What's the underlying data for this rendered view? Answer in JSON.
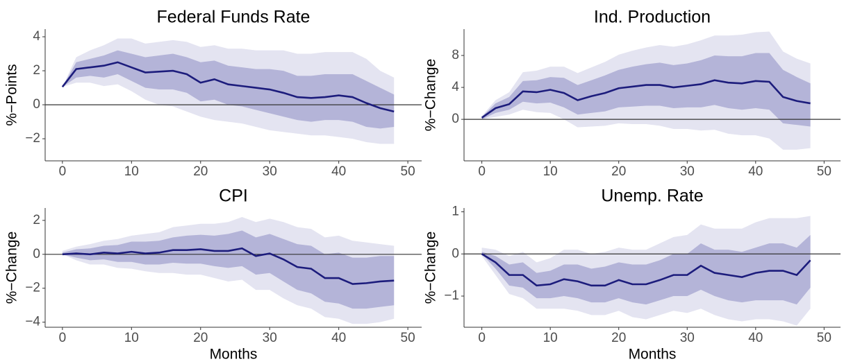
{
  "chart_data": [
    {
      "type": "line",
      "title": "Federal Funds Rate",
      "ylabel": "%−Points",
      "x": [
        0,
        2,
        4,
        6,
        8,
        10,
        12,
        14,
        16,
        18,
        20,
        22,
        24,
        26,
        28,
        30,
        32,
        34,
        36,
        38,
        40,
        42,
        44,
        46,
        48
      ],
      "values": [
        1.05,
        2.1,
        2.2,
        2.3,
        2.5,
        2.2,
        1.9,
        1.95,
        2.0,
        1.8,
        1.3,
        1.5,
        1.2,
        1.1,
        1.0,
        0.9,
        0.7,
        0.45,
        0.4,
        0.45,
        0.55,
        0.45,
        0.1,
        -0.2,
        -0.4
      ],
      "color": "#1c1c7c",
      "inner_band": {
        "color": "#b4b4d8",
        "lower": [
          1.05,
          1.6,
          1.7,
          1.6,
          1.8,
          1.4,
          1.0,
          0.9,
          0.9,
          0.7,
          0.2,
          0.3,
          0.0,
          -0.1,
          -0.3,
          -0.5,
          -0.7,
          -0.9,
          -1.0,
          -0.9,
          -0.9,
          -1.0,
          -1.3,
          -1.4,
          -1.3
        ],
        "upper": [
          1.05,
          2.5,
          2.7,
          2.9,
          3.2,
          3.0,
          2.8,
          2.9,
          3.0,
          2.8,
          2.5,
          2.6,
          2.3,
          2.2,
          2.1,
          2.1,
          2.0,
          1.7,
          1.7,
          1.8,
          1.8,
          1.8,
          1.4,
          1.0,
          0.6
        ]
      },
      "outer_band": {
        "color": "#e4e4f1",
        "lower": [
          1.05,
          1.3,
          1.3,
          1.1,
          1.2,
          0.8,
          0.3,
          0.0,
          -0.1,
          -0.4,
          -0.7,
          -0.9,
          -1.0,
          -1.1,
          -1.3,
          -1.5,
          -1.6,
          -1.7,
          -1.8,
          -1.8,
          -1.9,
          -2.0,
          -2.2,
          -2.3,
          -2.3
        ],
        "upper": [
          1.05,
          2.8,
          3.2,
          3.5,
          3.9,
          3.9,
          3.6,
          3.7,
          3.8,
          3.7,
          3.4,
          3.5,
          3.3,
          3.3,
          3.2,
          3.2,
          3.2,
          3.0,
          3.0,
          3.1,
          3.1,
          3.1,
          2.7,
          2.0,
          1.6
        ]
      },
      "reference_line": 0,
      "xlim": [
        -2.5,
        52
      ],
      "xticks": [
        0,
        10,
        20,
        30,
        40,
        50
      ],
      "ylim": [
        -3.3,
        4.45
      ],
      "yticks": [
        {
          "value": -2,
          "label": "−2"
        },
        0,
        2,
        4
      ]
    },
    {
      "type": "line",
      "title": "Ind. Production",
      "ylabel": "%−Change",
      "x": [
        0,
        2,
        4,
        6,
        8,
        10,
        12,
        14,
        16,
        18,
        20,
        22,
        24,
        26,
        28,
        30,
        32,
        34,
        36,
        38,
        40,
        42,
        44,
        46,
        48
      ],
      "values": [
        0.2,
        1.4,
        1.9,
        3.5,
        3.4,
        3.7,
        3.3,
        2.4,
        2.9,
        3.3,
        3.9,
        4.1,
        4.3,
        4.3,
        4.0,
        4.2,
        4.4,
        4.9,
        4.6,
        4.5,
        4.8,
        4.7,
        2.8,
        2.3,
        2.0
      ],
      "color": "#1c1c7c",
      "inner_band": {
        "color": "#b4b4d8",
        "lower": [
          0,
          0.8,
          1.2,
          2.2,
          2.0,
          2.1,
          1.5,
          0.6,
          0.8,
          1.0,
          1.5,
          1.6,
          1.7,
          1.7,
          1.4,
          1.5,
          1.5,
          1.8,
          1.4,
          1.2,
          1.4,
          1.2,
          -0.5,
          -0.7,
          -0.9
        ],
        "upper": [
          0.3,
          2.0,
          2.8,
          4.8,
          4.9,
          5.3,
          5.2,
          4.3,
          4.9,
          5.5,
          6.2,
          6.6,
          6.9,
          7.1,
          6.8,
          7.0,
          7.4,
          8.0,
          7.9,
          7.9,
          8.3,
          8.3,
          6.2,
          5.3,
          4.5
        ]
      },
      "outer_band": {
        "color": "#e4e4f1",
        "lower": [
          0,
          0.3,
          0.6,
          1.2,
          0.9,
          0.8,
          0,
          -1.0,
          -0.9,
          -0.8,
          -0.5,
          -0.6,
          -0.6,
          -0.8,
          -1.2,
          -1.2,
          -1.4,
          -1.3,
          -1.8,
          -2.0,
          -2.0,
          -2.4,
          -3.8,
          -3.8,
          -3.6
        ],
        "upper": [
          0.4,
          2.4,
          3.4,
          5.9,
          6.1,
          6.6,
          6.6,
          5.8,
          6.5,
          7.2,
          8.1,
          8.6,
          9.0,
          9.3,
          9.1,
          9.4,
          9.9,
          10.5,
          10.5,
          10.6,
          10.9,
          11.0,
          8.5,
          7.6,
          7.0
        ]
      },
      "reference_line": 0,
      "xlim": [
        -2.6,
        52.4
      ],
      "xticks": [
        0,
        10,
        20,
        30,
        40,
        50
      ],
      "ylim": [
        -5.2,
        11.3
      ],
      "yticks": [
        0,
        4,
        8
      ]
    },
    {
      "type": "line",
      "title": "CPI",
      "ylabel": "%−Change",
      "xlabel": "Months",
      "x": [
        0,
        2,
        4,
        6,
        8,
        10,
        12,
        14,
        16,
        18,
        20,
        22,
        24,
        26,
        28,
        30,
        32,
        34,
        36,
        38,
        40,
        42,
        44,
        46,
        48
      ],
      "values": [
        0,
        0.05,
        0,
        0.1,
        0.05,
        0.15,
        0.05,
        0.1,
        0.25,
        0.25,
        0.3,
        0.2,
        0.2,
        0.35,
        -0.1,
        0.05,
        -0.3,
        -0.75,
        -0.85,
        -1.4,
        -1.4,
        -1.75,
        -1.7,
        -1.6,
        -1.55
      ],
      "color": "#1c1c7c",
      "inner_band": {
        "color": "#b4b4d8",
        "lower": [
          0,
          -0.2,
          -0.35,
          -0.3,
          -0.45,
          -0.45,
          -0.6,
          -0.6,
          -0.5,
          -0.55,
          -0.55,
          -0.7,
          -0.8,
          -0.7,
          -1.2,
          -1.1,
          -1.6,
          -2.1,
          -2.3,
          -2.8,
          -2.9,
          -3.2,
          -3.2,
          -3.1,
          -3.0
        ],
        "upper": [
          0.1,
          0.3,
          0.35,
          0.5,
          0.55,
          0.75,
          0.75,
          0.8,
          1.0,
          1.1,
          1.15,
          1.1,
          1.2,
          1.4,
          1.0,
          1.2,
          0.9,
          0.6,
          0.5,
          0.0,
          0.1,
          -0.2,
          -0.2,
          -0.1,
          -0.1
        ]
      },
      "outer_band": {
        "color": "#e4e4f1",
        "lower": [
          0,
          -0.35,
          -0.6,
          -0.6,
          -0.8,
          -0.85,
          -1.0,
          -1.1,
          -1.1,
          -1.2,
          -1.2,
          -1.4,
          -1.6,
          -1.5,
          -2.1,
          -2.1,
          -2.6,
          -3.0,
          -3.2,
          -3.7,
          -3.8,
          -4.1,
          -4.1,
          -4.0,
          -3.8
        ],
        "upper": [
          0.2,
          0.45,
          0.6,
          0.8,
          0.9,
          1.1,
          1.2,
          1.3,
          1.6,
          1.7,
          1.8,
          1.8,
          1.9,
          2.2,
          1.9,
          2.1,
          1.9,
          1.6,
          1.5,
          1.0,
          1.1,
          0.8,
          0.7,
          0.6,
          0.5
        ]
      },
      "reference_line": 0,
      "xlim": [
        -2.5,
        52
      ],
      "xticks": [
        0,
        10,
        20,
        30,
        40,
        50
      ],
      "ylim": [
        -4.3,
        2.73
      ],
      "yticks": [
        {
          "value": -4,
          "label": "−4"
        },
        {
          "value": -2,
          "label": "−2"
        },
        0,
        2
      ]
    },
    {
      "type": "line",
      "title": "Unemp. Rate",
      "ylabel": "%−Change",
      "xlabel": "Months",
      "x": [
        0,
        2,
        4,
        6,
        8,
        10,
        12,
        14,
        16,
        18,
        20,
        22,
        24,
        26,
        28,
        30,
        32,
        34,
        36,
        38,
        40,
        42,
        44,
        46,
        48
      ],
      "values": [
        0,
        -0.2,
        -0.5,
        -0.5,
        -0.75,
        -0.72,
        -0.6,
        -0.65,
        -0.75,
        -0.75,
        -0.62,
        -0.72,
        -0.72,
        -0.62,
        -0.5,
        -0.5,
        -0.28,
        -0.45,
        -0.5,
        -0.55,
        -0.45,
        -0.4,
        -0.4,
        -0.5,
        -0.15
      ],
      "color": "#1c1c7c",
      "inner_band": {
        "color": "#b4b4d8",
        "lower": [
          0,
          -0.35,
          -0.75,
          -0.8,
          -1.05,
          -1.05,
          -1.0,
          -1.05,
          -1.15,
          -1.15,
          -1.05,
          -1.15,
          -1.2,
          -1.1,
          -1.0,
          -1.0,
          -0.85,
          -1.0,
          -1.1,
          -1.15,
          -1.1,
          -1.1,
          -1.1,
          -1.2,
          -0.8
        ],
        "upper": [
          0.05,
          -0.05,
          -0.25,
          -0.2,
          -0.45,
          -0.4,
          -0.25,
          -0.25,
          -0.35,
          -0.3,
          -0.2,
          -0.25,
          -0.25,
          -0.15,
          0,
          0,
          0.25,
          0.1,
          0.1,
          0.05,
          0.15,
          0.25,
          0.25,
          0.15,
          0.45
        ]
      },
      "outer_band": {
        "color": "#e4e4f1",
        "lower": [
          -0.05,
          -0.5,
          -0.95,
          -1.05,
          -1.3,
          -1.3,
          -1.3,
          -1.35,
          -1.45,
          -1.45,
          -1.35,
          -1.5,
          -1.55,
          -1.45,
          -1.35,
          -1.4,
          -1.3,
          -1.45,
          -1.55,
          -1.6,
          -1.55,
          -1.55,
          -1.6,
          -1.7,
          -1.3
        ],
        "upper": [
          0.15,
          0.1,
          -0.05,
          0.05,
          -0.2,
          -0.1,
          0.1,
          0.1,
          0,
          0.05,
          0.15,
          0.1,
          0.1,
          0.25,
          0.4,
          0.45,
          0.7,
          0.6,
          0.6,
          0.6,
          0.75,
          0.85,
          0.85,
          0.85,
          0.9
        ]
      },
      "reference_line": 0,
      "xlim": [
        -2.6,
        52.4
      ],
      "xticks": [
        0,
        10,
        20,
        30,
        40,
        50
      ],
      "ylim": [
        -1.74,
        1.09
      ],
      "yticks": [
        {
          "value": -1,
          "label": "−1"
        },
        0,
        1
      ]
    }
  ]
}
